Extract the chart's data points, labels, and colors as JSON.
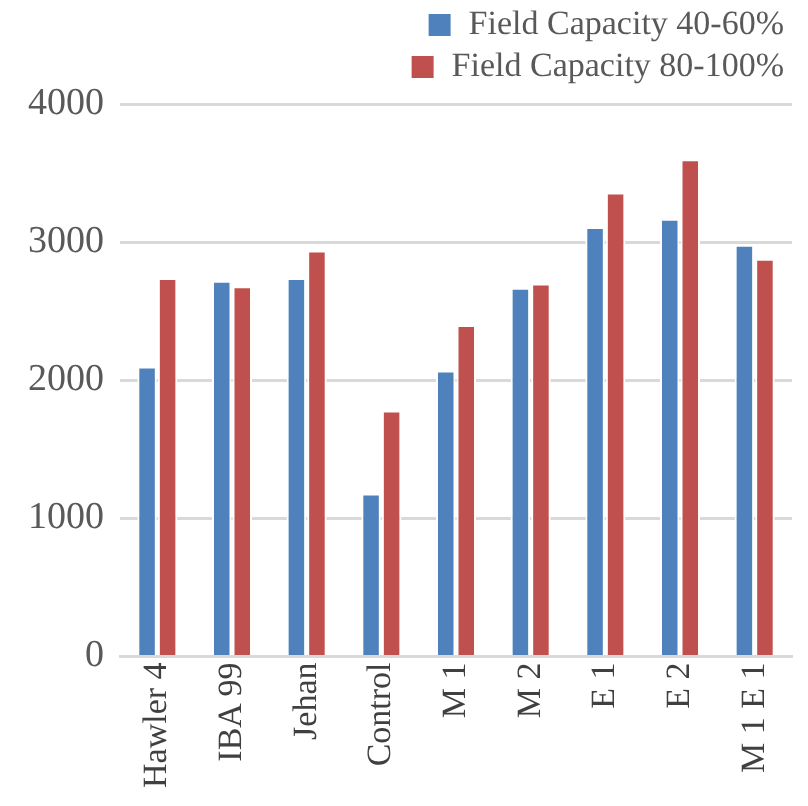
{
  "chart_data": {
    "type": "bar",
    "categories": [
      "Hawler 4",
      "IBA 99",
      "Jehan",
      "Control",
      "M 1",
      "M 2",
      "E 1",
      "E 2",
      "M 1 E 1"
    ],
    "series": [
      {
        "name": "Field Capacity 40-60%",
        "color": "#4f81bd",
        "values": [
          2100,
          2720,
          2740,
          1180,
          2070,
          2670,
          3110,
          3170,
          2980
        ]
      },
      {
        "name": "Field Capacity 80-100%",
        "color": "#c0504d",
        "values": [
          2740,
          2680,
          2940,
          1780,
          2400,
          2700,
          3360,
          3600,
          2880
        ]
      }
    ],
    "ylim": [
      0,
      4000
    ],
    "yticks": [
      0,
      1000,
      2000,
      3000,
      4000
    ],
    "grid": "y",
    "legend": "top right"
  }
}
